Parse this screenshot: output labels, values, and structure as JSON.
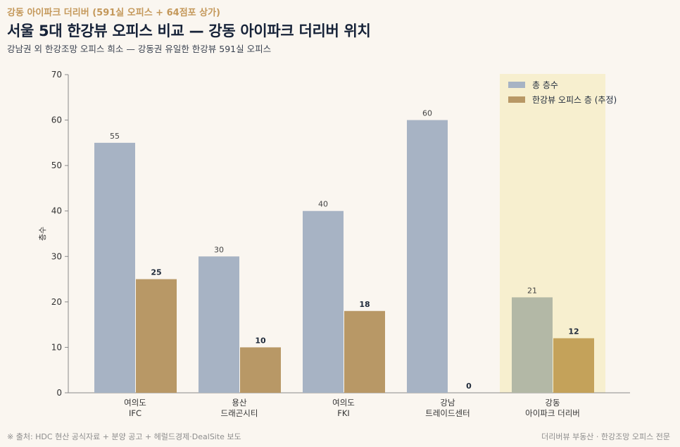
{
  "header": {
    "kicker": "강동 아이파크 더리버 (591실 오피스 + 64점포 상가)",
    "title": "서울 5대 한강뷰 오피스 비교 — 강동 아이파크 더리버 위치",
    "subtitle": "강남권 외 한강조망 오피스 희소 — 강동권 유일한 한강뷰 591실 오피스"
  },
  "footer": {
    "source": "※ 출처: HDC 현산 공식자료 + 분양 공고 + 헤럴드경제·DealSite 보도",
    "brand": "더리버뷰 부동산 · 한강조망 오피스 전문"
  },
  "colors": {
    "total": "#a7b3c4",
    "riverview": "#b89866",
    "highlight_total": "#b3b8a6",
    "highlight_riverview": "#c4a25a",
    "highlight_band": "#f7efcf"
  },
  "chart_data": {
    "type": "bar",
    "categories": [
      [
        "여의도",
        "IFC"
      ],
      [
        "용산",
        "드래곤시티"
      ],
      [
        "여의도",
        "FKI"
      ],
      [
        "강남",
        "트레이드센터"
      ],
      [
        "강동",
        "아이파크 더리버"
      ]
    ],
    "series": [
      {
        "name": "총 층수",
        "values": [
          55,
          30,
          40,
          60,
          21
        ]
      },
      {
        "name": "한강뷰 오피스 층 (추정)",
        "values": [
          25,
          10,
          18,
          0,
          12
        ]
      }
    ],
    "highlight_index": 4,
    "ylabel": "층수",
    "ylim": [
      0,
      70
    ],
    "yticks": [
      0,
      10,
      20,
      30,
      40,
      50,
      60,
      70
    ],
    "legend_position": "top-right",
    "grid": false
  }
}
